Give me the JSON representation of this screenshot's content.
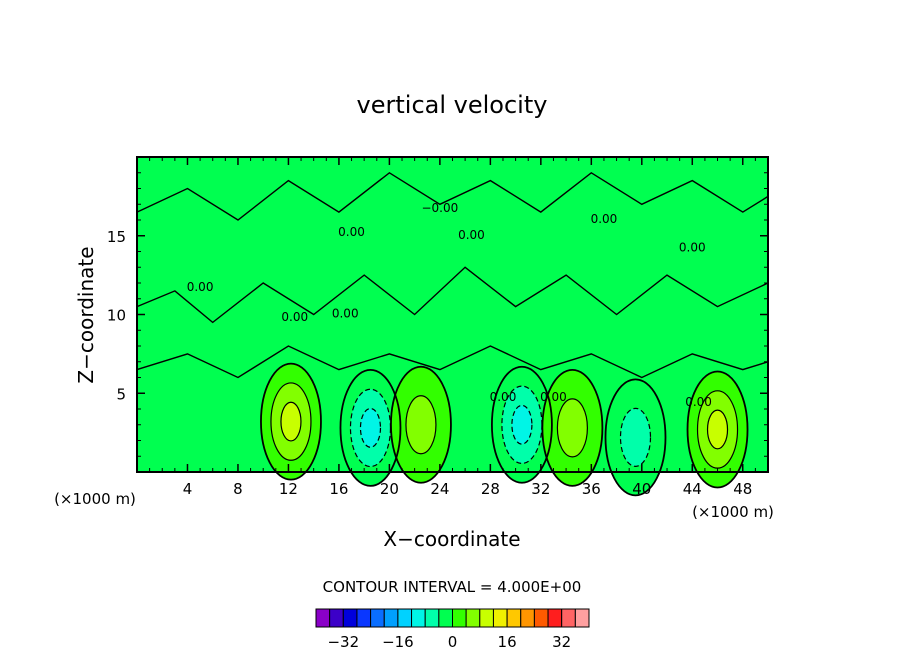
{
  "chart_data": {
    "type": "contour",
    "title": "vertical velocity",
    "xlabel": "X−coordinate",
    "ylabel": "Z−coordinate",
    "x_unit": "(×1000 m)",
    "x_unit_right": "(×1000 m)",
    "xlim": [
      0,
      50
    ],
    "ylim": [
      0,
      20
    ],
    "x_ticks": [
      4,
      8,
      12,
      16,
      20,
      24,
      28,
      32,
      36,
      40,
      44,
      48
    ],
    "x_tick_labels": [
      "4",
      "8",
      "12",
      "16",
      "20",
      "24",
      "28",
      "32",
      "36",
      "40",
      "44",
      "48"
    ],
    "y_ticks": [
      5,
      10,
      15
    ],
    "y_tick_labels": [
      "5",
      "10",
      "15"
    ],
    "contour_interval_text": "CONTOUR INTERVAL = 4.000E+00",
    "contour_interval": 4,
    "contour_labels": [
      "0.00",
      "0.00",
      "0.00",
      "0.00",
      "0.00",
      "0.00",
      "0.00",
      "0.00",
      "0.00",
      "0.00",
      "−0.00"
    ],
    "colorbar": {
      "levels": [
        -36,
        -32,
        -28,
        -24,
        -20,
        -16,
        -12,
        -8,
        -4,
        0,
        4,
        8,
        12,
        16,
        20,
        24,
        28,
        32,
        36
      ],
      "colors": [
        "#8a00c8",
        "#3c00c8",
        "#0000dc",
        "#0a37ff",
        "#0a6eff",
        "#00a0ff",
        "#00d2ff",
        "#00f5e6",
        "#00ffaa",
        "#00ff50",
        "#32ff00",
        "#82ff00",
        "#c8ff00",
        "#f0f000",
        "#ffc800",
        "#ff9600",
        "#ff5a00",
        "#ff1e1e",
        "#ff6464",
        "#ffa0a0"
      ],
      "tick_values": [
        -32,
        -16,
        0,
        16,
        32
      ],
      "tick_labels": [
        "−32",
        "−16",
        "0",
        "16",
        "32"
      ]
    },
    "features": [
      {
        "kind": "updraft",
        "x": 12.2,
        "z": 3.2,
        "peak": 9
      },
      {
        "kind": "downdraft",
        "x": 18.5,
        "z": 2.8,
        "peak": -10
      },
      {
        "kind": "updraft",
        "x": 22.5,
        "z": 3.0,
        "peak": 6
      },
      {
        "kind": "downdraft",
        "x": 30.5,
        "z": 3.0,
        "peak": -10
      },
      {
        "kind": "updraft",
        "x": 34.5,
        "z": 2.8,
        "peak": 6
      },
      {
        "kind": "downdraft",
        "x": 39.5,
        "z": 2.2,
        "peak": -7
      },
      {
        "kind": "updraft",
        "x": 46.0,
        "z": 2.7,
        "peak": 9
      }
    ]
  }
}
